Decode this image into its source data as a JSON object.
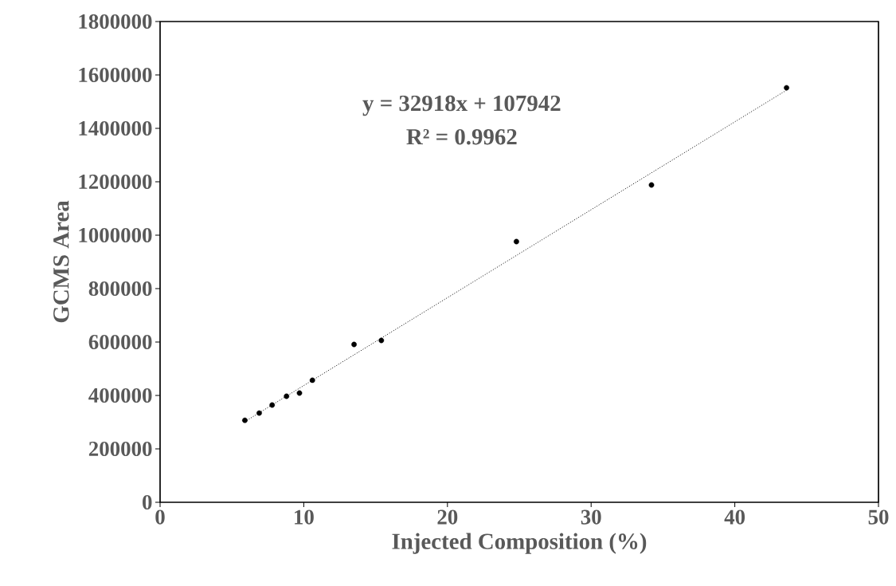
{
  "chart_data": {
    "type": "scatter",
    "xlabel": "Injected Composition (%)",
    "ylabel": "GCMS Area",
    "xlim": [
      0,
      50
    ],
    "xticks": [
      0,
      10,
      20,
      30,
      40,
      50
    ],
    "ylim": [
      0,
      1800000
    ],
    "yticks": [
      0,
      200000,
      400000,
      600000,
      800000,
      1000000,
      1200000,
      1400000,
      1600000,
      1800000
    ],
    "grid": false,
    "series": [
      {
        "color": "#000000",
        "marker": "circle",
        "x": [
          5.9,
          6.9,
          7.8,
          8.8,
          9.7,
          10.6,
          13.5,
          15.4,
          24.8,
          34.2,
          43.6
        ],
        "values": [
          307000,
          334000,
          364000,
          397000,
          409000,
          457000,
          591000,
          606000,
          976000,
          1188000,
          1552000
        ]
      },
      {
        "type": "line",
        "color": "#000000",
        "marker": "none",
        "line_style": "dotted",
        "x": [
          5.9,
          43.6
        ],
        "values": [
          302000,
          1543000
        ]
      }
    ],
    "annotations": [
      "y = 32918x + 107942",
      "R² = 0.9962"
    ]
  }
}
